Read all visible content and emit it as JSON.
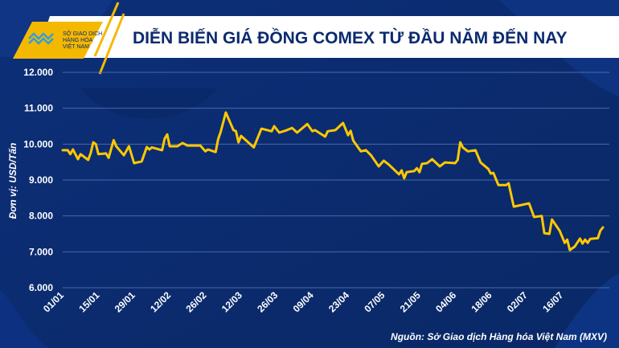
{
  "header": {
    "title": "DIỄN BIẾN GIÁ ĐỒNG COMEX TỪ ĐẦU NĂM ĐẾN NAY",
    "logo_lines": [
      "SỞ GIAO DỊCH",
      "HÀNG HÓA",
      "VIỆT NAM"
    ]
  },
  "colors": {
    "background": "#0a2a6c",
    "line": "#ffc800",
    "accent": "#f5b800",
    "title": "#0b2a6e"
  },
  "chart_data": {
    "type": "line",
    "title": "DIỄN BIẾN GIÁ ĐỒNG COMEX TỪ ĐẦU NĂM ĐẾN NAY",
    "ylabel": "Đơn vị: USD/Tấn",
    "xlabel": "",
    "source": "Nguồn: Sở Giao dịch Hàng hóa Việt Nam (MXV)",
    "ylim": [
      6000,
      12000
    ],
    "yticks": [
      6000,
      7000,
      8000,
      9000,
      10000,
      11000,
      12000
    ],
    "ytick_labels": [
      "6.000",
      "7.000",
      "8.000",
      "9.000",
      "10.000",
      "11.000",
      "12.000"
    ],
    "x_unit": "days since 01/01",
    "xticks": [
      0,
      14,
      28,
      42,
      56,
      70,
      84,
      98,
      112,
      126,
      140,
      154,
      168,
      182,
      196
    ],
    "xtick_labels": [
      "01/01",
      "15/01",
      "29/01",
      "12/02",
      "26/02",
      "12/03",
      "26/03",
      "09/04",
      "23/04",
      "07/05",
      "21/05",
      "04/06",
      "18/06",
      "02/07",
      "16/07"
    ],
    "grid": true,
    "series": [
      {
        "name": "Giá đồng COMEX",
        "x": [
          0,
          2,
          3,
          4,
          6,
          7,
          10,
          11,
          12,
          13,
          14,
          17,
          18,
          20,
          21,
          24,
          26,
          28,
          31,
          33,
          34,
          35,
          39,
          40,
          41,
          42,
          45,
          47,
          49,
          54,
          56,
          57,
          60,
          61,
          62,
          64,
          67,
          68,
          69,
          70,
          75,
          78,
          82,
          83,
          85,
          88,
          90,
          92,
          96,
          98,
          99,
          103,
          104,
          107,
          110,
          112,
          113,
          114,
          117,
          119,
          121,
          124,
          126,
          128,
          132,
          133,
          134,
          135,
          138,
          139,
          140,
          141,
          143,
          145,
          148,
          150,
          154,
          155,
          156,
          157,
          159,
          162,
          164,
          167,
          168,
          169,
          171,
          174,
          175,
          177,
          183,
          185,
          188,
          189,
          191,
          192,
          195,
          197,
          198,
          199,
          201,
          203,
          204,
          205,
          206,
          207,
          210,
          211,
          212
        ],
        "values": [
          9830,
          9830,
          9720,
          9850,
          9580,
          9720,
          9560,
          9760,
          10050,
          10000,
          9720,
          9740,
          9620,
          10110,
          9940,
          9690,
          9940,
          9470,
          9520,
          9920,
          9850,
          9910,
          9830,
          10150,
          10270,
          9940,
          9940,
          10030,
          9960,
          9960,
          9800,
          9850,
          9780,
          10140,
          10340,
          10880,
          10390,
          10360,
          10050,
          10230,
          9910,
          10430,
          10360,
          10500,
          10320,
          10390,
          10450,
          10320,
          10560,
          10360,
          10390,
          10210,
          10360,
          10390,
          10590,
          10250,
          10370,
          10100,
          9800,
          9830,
          9690,
          9380,
          9540,
          9430,
          9160,
          9270,
          9050,
          9220,
          9250,
          9330,
          9220,
          9450,
          9470,
          9580,
          9380,
          9490,
          9470,
          9560,
          10050,
          9910,
          9800,
          9830,
          9490,
          9310,
          9180,
          9200,
          8860,
          8860,
          8910,
          8260,
          8350,
          7970,
          8000,
          7520,
          7500,
          7900,
          7590,
          7250,
          7340,
          7050,
          7150,
          7370,
          7230,
          7340,
          7250,
          7360,
          7380,
          7590,
          7680
        ]
      }
    ]
  }
}
